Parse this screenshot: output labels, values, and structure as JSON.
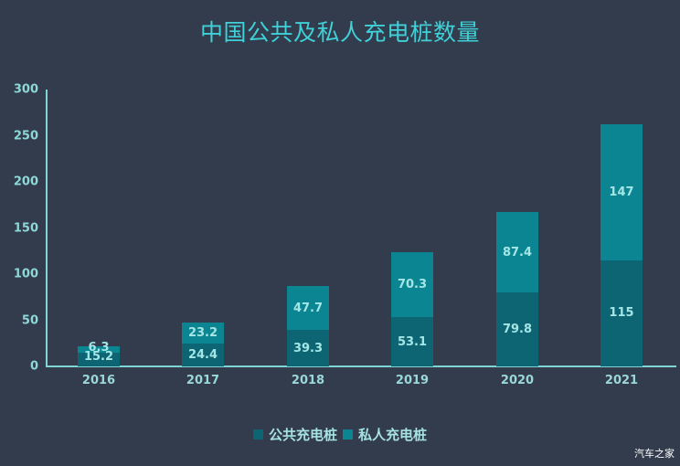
{
  "title": "中国公共及私人充电桩数量",
  "watermark": "汽车之家",
  "colors": {
    "background": "#323c4c",
    "title": "#3fd0d8",
    "axis": "#7fd4d4",
    "public": "#0d6574",
    "private": "#0b8591",
    "label": "#a4e6e6"
  },
  "legend": [
    {
      "label": "公共充电桩",
      "color": "#0d6574"
    },
    {
      "label": "私人充电桩",
      "color": "#0b8591"
    }
  ],
  "y_ticks": [
    "300",
    "250",
    "200",
    "150",
    "100",
    "50",
    "0"
  ],
  "chart_data": {
    "type": "bar",
    "stacked": true,
    "title": "中国公共及私人充电桩数量",
    "xlabel": "",
    "ylabel": "",
    "ylim": [
      0,
      300
    ],
    "yticks": [
      0,
      50,
      100,
      150,
      200,
      250,
      300
    ],
    "grid": false,
    "legend_position": "bottom",
    "categories": [
      "2016",
      "2017",
      "2018",
      "2019",
      "2020",
      "2021"
    ],
    "series": [
      {
        "name": "公共充电桩",
        "values": [
          15.2,
          24.4,
          39.3,
          53.1,
          79.8,
          115
        ]
      },
      {
        "name": "私人充电桩",
        "values": [
          6.3,
          23.2,
          47.7,
          70.3,
          87.4,
          147
        ]
      }
    ]
  }
}
